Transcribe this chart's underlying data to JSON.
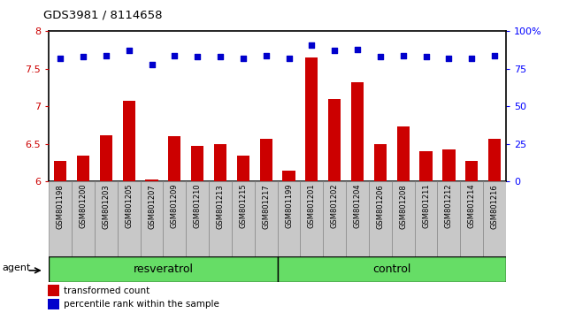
{
  "title": "GDS3981 / 8114658",
  "samples": [
    "GSM801198",
    "GSM801200",
    "GSM801203",
    "GSM801205",
    "GSM801207",
    "GSM801209",
    "GSM801210",
    "GSM801213",
    "GSM801215",
    "GSM801217",
    "GSM801199",
    "GSM801201",
    "GSM801202",
    "GSM801204",
    "GSM801206",
    "GSM801208",
    "GSM801211",
    "GSM801212",
    "GSM801214",
    "GSM801216"
  ],
  "transformed_count": [
    6.28,
    6.35,
    6.62,
    7.08,
    6.03,
    6.6,
    6.48,
    6.5,
    6.35,
    6.57,
    6.15,
    7.65,
    7.1,
    7.32,
    6.5,
    6.73,
    6.4,
    6.43,
    6.28,
    6.57
  ],
  "percentile_rank": [
    82,
    83,
    84,
    87,
    78,
    84,
    83,
    83,
    82,
    84,
    82,
    91,
    87,
    88,
    83,
    84,
    83,
    82,
    82,
    84
  ],
  "group_labels": [
    "resveratrol",
    "control"
  ],
  "group_sizes": [
    10,
    10
  ],
  "bar_color": "#CC0000",
  "dot_color": "#0000CC",
  "ylim_left": [
    6.0,
    8.0
  ],
  "ylim_right": [
    0,
    100
  ],
  "yticks_left": [
    6.0,
    6.5,
    7.0,
    7.5,
    8.0
  ],
  "yticks_right": [
    0,
    25,
    50,
    75,
    100
  ],
  "ytick_labels_right": [
    "0",
    "25",
    "50",
    "75",
    "100%"
  ],
  "legend_items": [
    "transformed count",
    "percentile rank within the sample"
  ],
  "agent_label": "agent",
  "plot_bg": "#D8D8D8",
  "sample_bg": "#C8C8C8",
  "green_color": "#66DD66"
}
